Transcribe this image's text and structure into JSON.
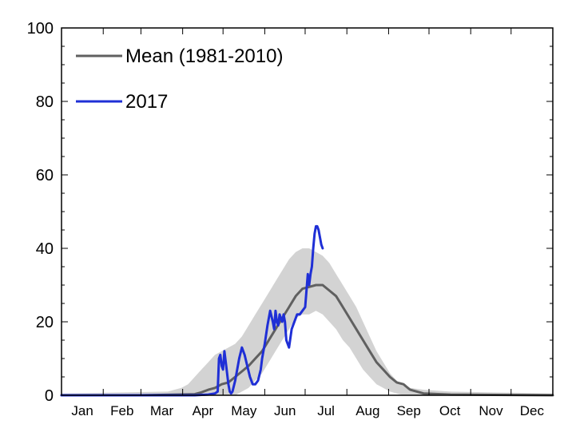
{
  "chart_data": {
    "type": "line",
    "title": "",
    "xlabel": "",
    "ylabel": "",
    "x_unit": "day_of_year",
    "xlim": [
      1,
      366
    ],
    "ylim": [
      0,
      100
    ],
    "y_ticks": [
      0,
      20,
      40,
      60,
      80,
      100
    ],
    "month_labels": [
      "Jan",
      "Feb",
      "Mar",
      "Apr",
      "May",
      "Jun",
      "Jul",
      "Aug",
      "Sep",
      "Oct",
      "Nov",
      "Dec"
    ],
    "month_start_days": [
      1,
      32,
      60,
      91,
      121,
      152,
      182,
      213,
      244,
      274,
      305,
      335,
      366
    ],
    "grid": false,
    "legend": {
      "position": "top-left",
      "entries": [
        {
          "label": "Mean (1981-2010)",
          "color": "#606060"
        },
        {
          "label": "2017",
          "color": "#1f2fd6"
        }
      ]
    },
    "band": {
      "color": "#d3d3d3",
      "x": [
        1,
        80,
        90,
        95,
        100,
        105,
        110,
        115,
        120,
        125,
        130,
        135,
        140,
        145,
        150,
        155,
        160,
        165,
        170,
        175,
        180,
        185,
        190,
        195,
        200,
        205,
        210,
        215,
        220,
        225,
        230,
        235,
        240,
        245,
        250,
        255,
        260,
        270,
        290,
        366
      ],
      "lower": [
        0,
        0,
        0,
        0,
        0,
        0,
        0,
        0,
        0,
        0,
        0,
        1,
        2,
        4,
        6,
        9,
        12,
        15,
        18,
        21,
        22,
        22,
        23,
        22,
        20,
        18,
        15,
        13,
        10,
        7,
        5,
        3,
        2,
        1,
        0.5,
        0,
        0,
        0,
        0,
        0
      ],
      "upper": [
        0.5,
        1,
        2,
        3,
        5,
        7,
        9,
        11,
        12,
        13,
        14,
        16,
        19,
        22,
        25,
        28,
        31,
        34,
        37,
        39,
        40,
        40,
        39,
        38,
        36,
        33,
        30,
        27,
        24,
        20,
        16,
        12,
        9,
        6,
        4,
        2.5,
        2,
        1.5,
        1,
        0.5
      ]
    },
    "series": [
      {
        "name": "Mean (1981-2010)",
        "color": "#606060",
        "x": [
          1,
          60,
          100,
          105,
          110,
          115,
          120,
          125,
          130,
          135,
          140,
          145,
          150,
          155,
          160,
          165,
          170,
          175,
          180,
          185,
          190,
          195,
          200,
          205,
          210,
          215,
          220,
          225,
          230,
          235,
          240,
          245,
          250,
          255,
          260,
          270,
          290,
          366
        ],
        "y": [
          0,
          0,
          0.3,
          0.8,
          1.5,
          2,
          3,
          3.5,
          5,
          6.5,
          8,
          10,
          12,
          15,
          18,
          21,
          24,
          27,
          29,
          29.5,
          30,
          30,
          28.5,
          27,
          24,
          21,
          18,
          15,
          12,
          9,
          7,
          5,
          3.5,
          3,
          1.5,
          0.5,
          0.2,
          0
        ]
      },
      {
        "name": "2017",
        "color": "#1f2fd6",
        "x": [
          1,
          100,
          110,
          115,
          117,
          118,
          119,
          120,
          121,
          122,
          123,
          125,
          126,
          127,
          128,
          130,
          133,
          135,
          137,
          139,
          141,
          143,
          145,
          147,
          149,
          150,
          152,
          154,
          156,
          158,
          159,
          160,
          161,
          162,
          163,
          164,
          165,
          166,
          167,
          168,
          169,
          170,
          172,
          174,
          176,
          178,
          180,
          182,
          184,
          185,
          186,
          187,
          188,
          189,
          190,
          191,
          192,
          193,
          194,
          195
        ],
        "y": [
          0,
          0,
          0.2,
          0.5,
          1,
          10,
          11,
          8,
          7,
          12,
          9,
          3,
          1,
          0.5,
          1,
          4,
          10,
          13,
          11,
          8,
          5,
          3,
          3,
          4,
          7,
          10,
          14,
          19,
          23,
          20,
          18,
          23,
          20,
          19,
          22,
          21,
          20,
          22,
          20,
          15,
          14,
          13,
          18,
          20,
          22,
          22,
          23,
          24,
          33,
          30,
          33,
          35,
          40,
          44,
          46,
          46,
          45,
          43,
          41,
          40
        ]
      }
    ]
  }
}
